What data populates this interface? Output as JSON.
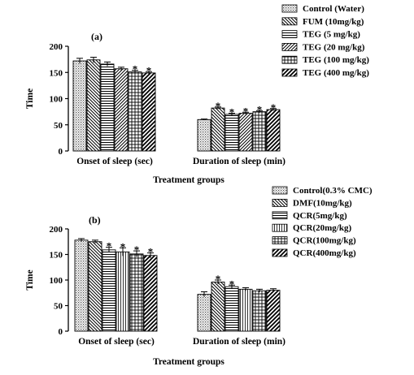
{
  "chart_data": [
    {
      "type": "bar",
      "panel_label": "(a)",
      "categories": [
        "Onset of sleep (sec)",
        "Duration of sleep (min)"
      ],
      "xlabel": "Treatment groups",
      "ylabel": "Time",
      "ylim": [
        0,
        200
      ],
      "yticks": [
        0,
        50,
        100,
        150,
        200
      ],
      "legend_position": "top-right",
      "series": [
        {
          "name": "Control (Water)",
          "values": [
            172,
            60
          ],
          "errors": [
            5,
            1
          ],
          "significant": [
            false,
            false
          ],
          "pattern": "dots"
        },
        {
          "name": "FUM (10mg/kg)",
          "values": [
            174,
            82
          ],
          "errors": [
            5,
            2
          ],
          "significant": [
            false,
            true
          ],
          "pattern": "diag-back"
        },
        {
          "name": "TEG (5 mg/kg)",
          "values": [
            166,
            70
          ],
          "errors": [
            4,
            2
          ],
          "significant": [
            false,
            true
          ],
          "pattern": "hlines"
        },
        {
          "name": "TEG (20 mg/kg)",
          "values": [
            157,
            72
          ],
          "errors": [
            3,
            2
          ],
          "significant": [
            false,
            true
          ],
          "pattern": "diag-fwd"
        },
        {
          "name": "TEG (100 mg/kg)",
          "values": [
            151,
            75
          ],
          "errors": [
            3,
            2
          ],
          "significant": [
            true,
            true
          ],
          "pattern": "grid"
        },
        {
          "name": "TEG (400 mg/kg)",
          "values": [
            149,
            79
          ],
          "errors": [
            2,
            2
          ],
          "significant": [
            true,
            true
          ],
          "pattern": "diag-fwd-bold"
        }
      ]
    },
    {
      "type": "bar",
      "panel_label": "(b)",
      "categories": [
        "Onset of sleep (sec)",
        "Duration of sleep (min)"
      ],
      "xlabel": "Treatment groups",
      "ylabel": "Time",
      "ylim": [
        0,
        200
      ],
      "yticks": [
        0,
        50,
        100,
        150,
        200
      ],
      "legend_position": "top-right",
      "series": [
        {
          "name": "Control(0.3% CMC)",
          "values": [
            178,
            72
          ],
          "errors": [
            3,
            5
          ],
          "significant": [
            false,
            false
          ],
          "pattern": "dots"
        },
        {
          "name": "DMF(10mg/kg)",
          "values": [
            175,
            96
          ],
          "errors": [
            3,
            4
          ],
          "significant": [
            false,
            true
          ],
          "pattern": "diag-back"
        },
        {
          "name": "QCR(5mg/kg)",
          "values": [
            159,
            87
          ],
          "errors": [
            5,
            3
          ],
          "significant": [
            true,
            true
          ],
          "pattern": "hlines"
        },
        {
          "name": "QCR(20mg/kg)",
          "values": [
            155,
            82
          ],
          "errors": [
            8,
            3
          ],
          "significant": [
            true,
            false
          ],
          "pattern": "vlines"
        },
        {
          "name": "QCR(100mg/kg)",
          "values": [
            151,
            79
          ],
          "errors": [
            6,
            3
          ],
          "significant": [
            true,
            false
          ],
          "pattern": "grid"
        },
        {
          "name": "QCR(400mg/kg)",
          "values": [
            148,
            80
          ],
          "errors": [
            5,
            3
          ],
          "significant": [
            true,
            false
          ],
          "pattern": "diag-fwd-bold"
        }
      ]
    }
  ]
}
